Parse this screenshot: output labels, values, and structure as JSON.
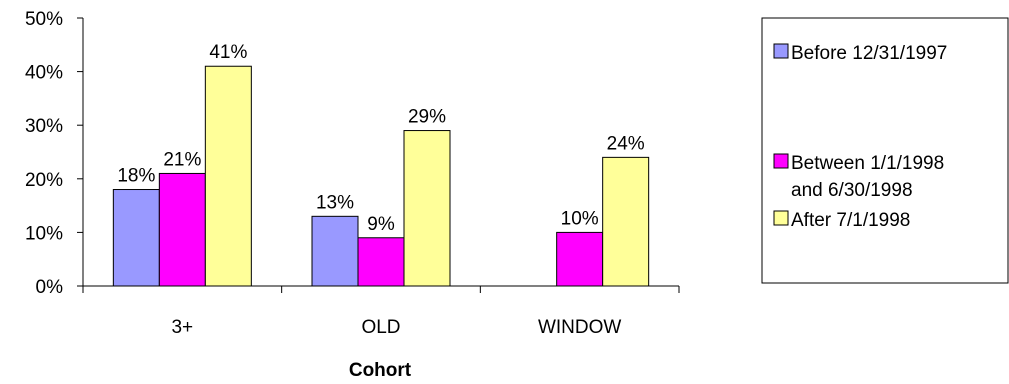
{
  "chart_data": {
    "type": "bar",
    "xlabel": "Cohort",
    "ylabel": "",
    "ylim": [
      0,
      50
    ],
    "yticks": [
      "0%",
      "10%",
      "20%",
      "30%",
      "40%",
      "50%"
    ],
    "grid": false,
    "legend_position": "right",
    "categories": [
      "3+",
      "OLD",
      "WINDOW"
    ],
    "series": [
      {
        "name": "Before 12/31/1997",
        "color": "#9999ff",
        "values": [
          18,
          13,
          null
        ],
        "labels": [
          "18%",
          "13%",
          ""
        ]
      },
      {
        "name": "Between 1/1/1998 and 6/30/1998",
        "legend_lines": [
          "Between 1/1/1998",
          "and 6/30/1998"
        ],
        "color": "#ff00ff",
        "values": [
          21,
          9,
          10
        ],
        "labels": [
          "21%",
          "9%",
          "10%"
        ]
      },
      {
        "name": "After 7/1/1998",
        "color": "#ffff99",
        "values": [
          41,
          29,
          24
        ],
        "labels": [
          "41%",
          "29%",
          "24%"
        ]
      }
    ]
  }
}
